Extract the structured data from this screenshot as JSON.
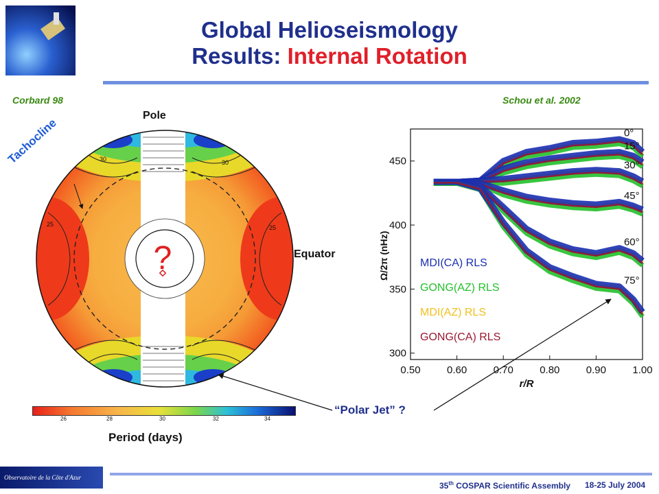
{
  "header": {
    "title_line1": "Global Helioseismology",
    "title_line2_prefix": "Results: ",
    "title_line2_highlight": "Internal Rotation"
  },
  "left_panel": {
    "citation": "Corbard 98",
    "pole_label": "Pole",
    "equator_label": "Equator",
    "tachocline_label": "Tachocline",
    "question_mark": "?",
    "contour_labels": [
      "30",
      "30",
      "25",
      "25"
    ],
    "colorbar": {
      "ticks": [
        "26",
        "28",
        "30",
        "32",
        "34"
      ],
      "label": "Period (days)"
    }
  },
  "right_panel": {
    "citation": "Schou et al.  2002",
    "latitude_labels": [
      "0°",
      "15°",
      "30°",
      "45°",
      "60°",
      "75°"
    ],
    "legend": [
      {
        "label": "MDI(CA) RLS",
        "color": "#1a2fb0"
      },
      {
        "label": "GONG(AZ) RLS",
        "color": "#22c02a"
      },
      {
        "label": "MDI(AZ) RLS",
        "color": "#f0c020"
      },
      {
        "label": "GONG(CA) RLS",
        "color": "#9a1830"
      }
    ]
  },
  "chart_data": {
    "type": "line",
    "xlabel": "r/R",
    "ylabel": "Ω/2π (nHz)",
    "x_ticks": [
      "0.50",
      "0.60",
      "0.70",
      "0.80",
      "0.90",
      "1.00"
    ],
    "y_ticks": [
      "300",
      "350",
      "400",
      "450"
    ],
    "xlim": [
      0.5,
      1.0
    ],
    "ylim": [
      295,
      475
    ],
    "x": [
      0.55,
      0.6,
      0.65,
      0.7,
      0.75,
      0.8,
      0.85,
      0.9,
      0.95,
      0.98,
      1.0
    ],
    "series": [
      {
        "name": "0°",
        "values": [
          433,
          433,
          434,
          448,
          455,
          458,
          462,
          463,
          465,
          462,
          455
        ]
      },
      {
        "name": "15°",
        "values": [
          433,
          433,
          434,
          442,
          447,
          450,
          452,
          454,
          455,
          452,
          447
        ]
      },
      {
        "name": "30°",
        "values": [
          433,
          433,
          434,
          434,
          436,
          438,
          440,
          441,
          440,
          436,
          432
        ]
      },
      {
        "name": "45°",
        "values": [
          433,
          433,
          432,
          425,
          420,
          417,
          415,
          414,
          416,
          413,
          410
        ]
      },
      {
        "name": "60°",
        "values": [
          433,
          433,
          430,
          412,
          395,
          385,
          379,
          376,
          380,
          376,
          370
        ]
      },
      {
        "name": "75°",
        "values": [
          433,
          433,
          428,
          400,
          378,
          365,
          358,
          352,
          350,
          340,
          330
        ]
      }
    ]
  },
  "annotation": {
    "polar_jet_label": "“Polar Jet” ?"
  },
  "footer": {
    "logo_text": "Observatoire de la Côte d'Azur",
    "conf_prefix": "35",
    "conf_sup": "th",
    "conf_rest": " COSPAR  Scientific Assembly",
    "dates": "18-25  July 2004"
  }
}
